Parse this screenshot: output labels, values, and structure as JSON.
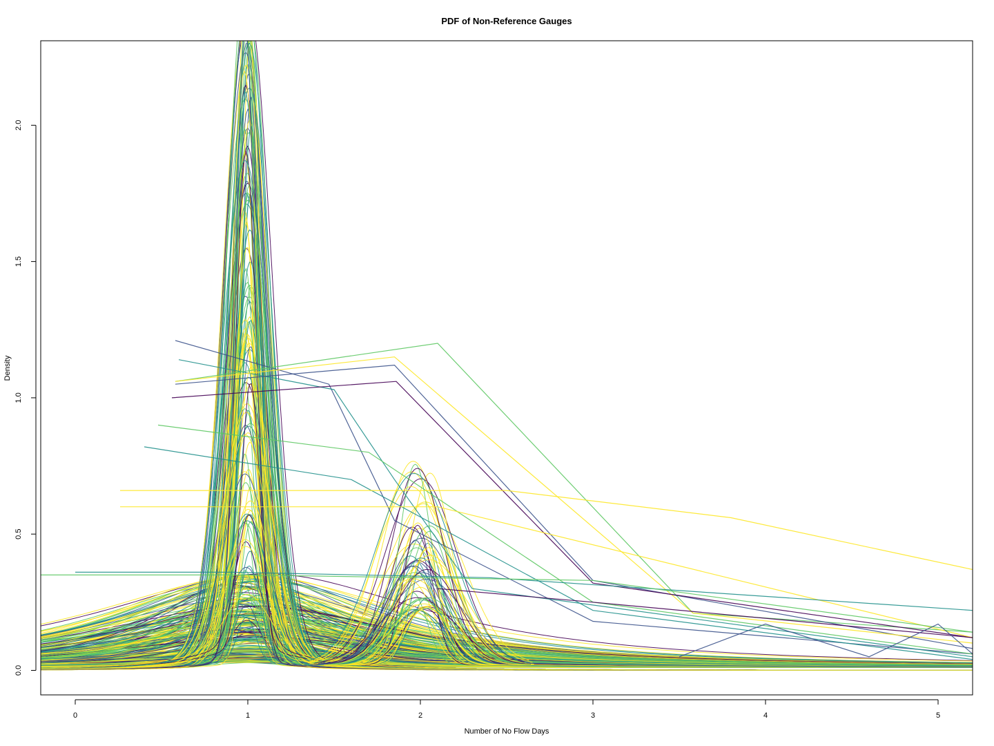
{
  "chart_data": {
    "type": "line",
    "title": "PDF of Non-Reference Gauges",
    "xlabel": "Number of No Flow Days",
    "ylabel": "Density",
    "xlim": [
      -0.2,
      5.2
    ],
    "ylim": [
      -0.09,
      2.31
    ],
    "x_ticks": [
      0,
      1,
      2,
      3,
      4,
      5
    ],
    "y_ticks": [
      0.0,
      0.5,
      1.0,
      1.5,
      2.0
    ],
    "x_tick_labels": [
      "0",
      "1",
      "2",
      "3",
      "4",
      "5"
    ],
    "y_tick_labels": [
      "0.0",
      "0.5",
      "1.0",
      "1.5",
      "2.0"
    ],
    "grid": false,
    "legend": "none",
    "palette": "viridis",
    "colors": [
      "#440154",
      "#3b528b",
      "#21908c",
      "#5dc863",
      "#fde725"
    ],
    "series": [
      {
        "color": "#3b528b",
        "x": [
          0.58,
          1.47,
          1.85,
          3.0,
          5.2
        ],
        "y": [
          1.21,
          1.05,
          0.55,
          0.18,
          0.06
        ]
      },
      {
        "color": "#21908c",
        "x": [
          0.6,
          1.5,
          1.85,
          2.3,
          5.2
        ],
        "y": [
          1.14,
          1.03,
          0.7,
          0.3,
          0.05
        ]
      },
      {
        "color": "#5dc863",
        "x": [
          0.58,
          2.1,
          3.58,
          5.2
        ],
        "y": [
          1.06,
          1.2,
          0.21,
          0.14
        ]
      },
      {
        "color": "#3b528b",
        "x": [
          0.58,
          1.85,
          3.0,
          5.2
        ],
        "y": [
          1.05,
          1.12,
          0.33,
          0.08
        ]
      },
      {
        "color": "#fde725",
        "x": [
          0.58,
          1.85,
          3.58,
          5.2
        ],
        "y": [
          1.06,
          1.15,
          0.21,
          0.1
        ]
      },
      {
        "color": "#440154",
        "x": [
          0.56,
          1.86,
          3.0,
          5.2
        ],
        "y": [
          1.0,
          1.06,
          0.32,
          0.12
        ]
      },
      {
        "color": "#21908c",
        "x": [
          0.4,
          1.6,
          3.0,
          5.2
        ],
        "y": [
          0.82,
          0.7,
          0.22,
          0.04
        ]
      },
      {
        "color": "#5dc863",
        "x": [
          0.48,
          1.7,
          3.0,
          5.2
        ],
        "y": [
          0.9,
          0.8,
          0.25,
          0.06
        ]
      },
      {
        "color": "#fde725",
        "x": [
          0.26,
          2.5,
          3.8,
          5.2
        ],
        "y": [
          0.66,
          0.66,
          0.56,
          0.37
        ]
      },
      {
        "color": "#fde725",
        "x": [
          0.26,
          2.1,
          5.2
        ],
        "y": [
          0.6,
          0.6,
          0.12
        ]
      },
      {
        "color": "#21908c",
        "x": [
          0.0,
          0.9,
          2.4,
          5.2
        ],
        "y": [
          0.36,
          0.36,
          0.34,
          0.22
        ]
      },
      {
        "color": "#5dc863",
        "x": [
          -0.2,
          1.0,
          3.0,
          5.2
        ],
        "y": [
          0.35,
          0.35,
          0.33,
          0.14
        ]
      },
      {
        "color": "#440154",
        "x": [
          2.1,
          3.0,
          5.2
        ],
        "y": [
          0.3,
          0.25,
          0.12
        ]
      },
      {
        "color": "#3b528b",
        "x": [
          3.5,
          4.0,
          4.6,
          5.0,
          5.2
        ],
        "y": [
          0.05,
          0.17,
          0.05,
          0.17,
          0.06
        ]
      }
    ],
    "kde_families": [
      {
        "count": 120,
        "center": 1.0,
        "peak_range": [
          0.0,
          2.31
        ],
        "spread": "narrow",
        "colors": "viridis"
      },
      {
        "count": 60,
        "center": 2.0,
        "peak_range": [
          0.2,
          0.78
        ],
        "spread": "narrow",
        "colors": "viridis"
      },
      {
        "count": 250,
        "center": 1.0,
        "peak_range": [
          0.0,
          0.35
        ],
        "spread": "wide",
        "colors": "viridis"
      }
    ]
  }
}
